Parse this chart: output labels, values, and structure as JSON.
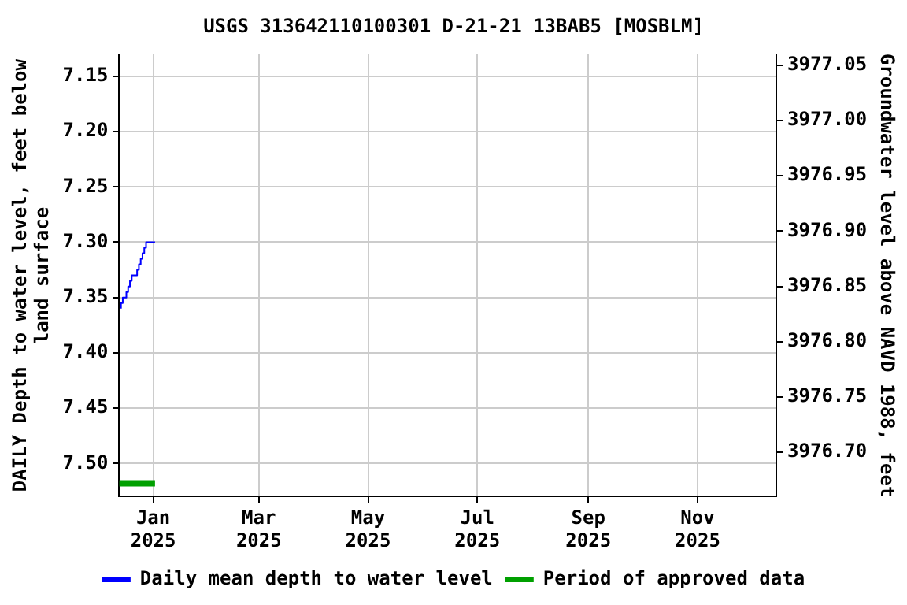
{
  "chart_data": {
    "type": "step",
    "title": "USGS 313642110100301 D-21-21 13BAB5 [MOSBLM]",
    "ylabel": "DAILY Depth to water level, feet below land surface",
    "y2label": "Groundwater level above NAVD 1988, feet",
    "series": [
      {
        "name": "Daily mean depth to water level",
        "color": "#0000ff",
        "x": [
          "2024-12-14",
          "2024-12-15",
          "2024-12-16",
          "2024-12-17",
          "2024-12-18",
          "2024-12-19",
          "2024-12-20",
          "2024-12-21",
          "2024-12-22",
          "2024-12-23",
          "2024-12-24",
          "2024-12-25",
          "2024-12-26",
          "2024-12-27",
          "2024-12-28",
          "2024-12-29",
          "2024-12-30",
          "2024-12-31",
          "2025-01-01",
          "2025-01-02"
        ],
        "values": [
          7.36,
          7.355,
          7.35,
          7.35,
          7.345,
          7.34,
          7.335,
          7.33,
          7.33,
          7.33,
          7.325,
          7.32,
          7.315,
          7.31,
          7.305,
          7.3,
          7.3,
          7.3,
          7.3,
          7.3
        ]
      },
      {
        "name": "Period of approved data",
        "type": "line",
        "color": "#00a000",
        "x": [
          "2024-12-13",
          "2025-01-02"
        ],
        "values": [
          7.518,
          7.518
        ]
      }
    ],
    "xlim": [
      "2024-12-13",
      "2025-12-15"
    ],
    "xticks": [
      {
        "value": "2025-01-01",
        "label": "Jan 2025"
      },
      {
        "value": "2025-03-01",
        "label": "Mar 2025"
      },
      {
        "value": "2025-05-01",
        "label": "May 2025"
      },
      {
        "value": "2025-07-01",
        "label": "Jul 2025"
      },
      {
        "value": "2025-09-01",
        "label": "Sep 2025"
      },
      {
        "value": "2025-11-01",
        "label": "Nov 2025"
      }
    ],
    "ylim": [
      7.53,
      7.13
    ],
    "yticks": [
      {
        "value": 7.15,
        "label": "7.15"
      },
      {
        "value": 7.2,
        "label": "7.20"
      },
      {
        "value": 7.25,
        "label": "7.25"
      },
      {
        "value": 7.3,
        "label": "7.30"
      },
      {
        "value": 7.35,
        "label": "7.35"
      },
      {
        "value": 7.4,
        "label": "7.40"
      },
      {
        "value": 7.45,
        "label": "7.45"
      },
      {
        "value": 7.5,
        "label": "7.50"
      }
    ],
    "y2lim": [
      3976.66,
      3977.06
    ],
    "y2ticks": [
      {
        "value": 3976.7,
        "label": "3976.70"
      },
      {
        "value": 3976.75,
        "label": "3976.75"
      },
      {
        "value": 3976.8,
        "label": "3976.80"
      },
      {
        "value": 3976.85,
        "label": "3976.85"
      },
      {
        "value": 3976.9,
        "label": "3976.90"
      },
      {
        "value": 3976.95,
        "label": "3976.95"
      },
      {
        "value": 3977.0,
        "label": "3977.00"
      },
      {
        "value": 3977.05,
        "label": "3977.05"
      }
    ],
    "grid": true,
    "legend": "bottom",
    "marker": "none",
    "line_style": "solid"
  }
}
